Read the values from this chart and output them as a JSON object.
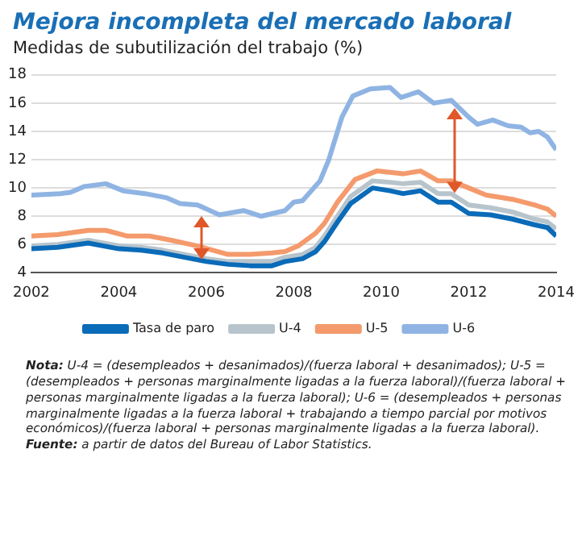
{
  "chart_data": {
    "type": "line",
    "title": "Mejora incompleta del mercado laboral",
    "subtitle": "Medidas de subutilización del trabajo (%)",
    "series": [
      {
        "name": "Tasa de paro",
        "color": "#0a6bb8",
        "x": [
          2002,
          2002.6,
          2003.3,
          2004,
          2004.5,
          2005,
          2005.5,
          2006,
          2006.5,
          2007,
          2007.5,
          2007.8,
          2008.2,
          2008.5,
          2008.7,
          2009,
          2009.3,
          2009.8,
          2010.2,
          2010.5,
          2010.9,
          2011.3,
          2011.6,
          2012,
          2012.5,
          2013,
          2013.5,
          2013.8,
          2014
        ],
        "values": [
          5.7,
          5.8,
          6.1,
          5.7,
          5.6,
          5.4,
          5.1,
          4.8,
          4.6,
          4.5,
          4.5,
          4.8,
          5.0,
          5.5,
          6.2,
          7.6,
          8.9,
          10.0,
          9.8,
          9.6,
          9.8,
          9.0,
          9.0,
          8.2,
          8.1,
          7.8,
          7.4,
          7.2,
          6.6
        ]
      },
      {
        "name": "U-4",
        "color": "#b8c4cc",
        "x": [
          2002,
          2002.6,
          2003.3,
          2004,
          2004.5,
          2005,
          2005.5,
          2006,
          2006.5,
          2007,
          2007.5,
          2007.8,
          2008.2,
          2008.5,
          2008.7,
          2009,
          2009.3,
          2009.8,
          2010.2,
          2010.5,
          2010.9,
          2011.3,
          2011.6,
          2012,
          2012.5,
          2013,
          2013.5,
          2013.8,
          2014
        ],
        "values": [
          5.9,
          6.0,
          6.3,
          5.9,
          5.8,
          5.6,
          5.3,
          5.0,
          4.8,
          4.8,
          4.8,
          5.1,
          5.3,
          5.8,
          6.6,
          8.0,
          9.4,
          10.5,
          10.4,
          10.3,
          10.4,
          9.6,
          9.6,
          8.8,
          8.6,
          8.3,
          7.8,
          7.6,
          7.1
        ]
      },
      {
        "name": "U-5",
        "color": "#f49a6c",
        "x": [
          2002,
          2002.6,
          2003.3,
          2003.7,
          2004.2,
          2004.7,
          2005.2,
          2005.8,
          2006.5,
          2007,
          2007.5,
          2007.8,
          2008.1,
          2008.5,
          2008.7,
          2009,
          2009.4,
          2009.9,
          2010.5,
          2010.9,
          2011.3,
          2011.6,
          2012,
          2012.4,
          2013,
          2013.5,
          2013.8,
          2014
        ],
        "values": [
          6.6,
          6.7,
          7.0,
          7.0,
          6.6,
          6.6,
          6.3,
          5.9,
          5.3,
          5.3,
          5.4,
          5.5,
          5.9,
          6.8,
          7.5,
          9.0,
          10.6,
          11.2,
          11.0,
          11.2,
          10.5,
          10.5,
          10.0,
          9.5,
          9.2,
          8.8,
          8.5,
          8.0
        ]
      },
      {
        "name": "U-6",
        "color": "#8fb4e3",
        "x": [
          2002,
          2002.66,
          2002.9,
          2003.2,
          2003.7,
          2004.1,
          2004.6,
          2005.1,
          2005.4,
          2005.8,
          2006.3,
          2006.85,
          2007.25,
          2007.8,
          2008,
          2008.2,
          2008.6,
          2008.8,
          2009.1,
          2009.35,
          2009.75,
          2010.2,
          2010.45,
          2010.85,
          2011.2,
          2011.6,
          2012,
          2012.2,
          2012.55,
          2012.9,
          2013.2,
          2013.4,
          2013.6,
          2013.8,
          2014
        ],
        "values": [
          9.5,
          9.6,
          9.7,
          10.1,
          10.3,
          9.8,
          9.6,
          9.3,
          8.9,
          8.8,
          8.1,
          8.4,
          8.0,
          8.4,
          9.0,
          9.1,
          10.5,
          12.0,
          15.0,
          16.5,
          17.0,
          17.1,
          16.4,
          16.8,
          16.0,
          16.2,
          15.0,
          14.5,
          14.8,
          14.4,
          14.3,
          13.9,
          14.0,
          13.6,
          12.7
        ]
      }
    ],
    "xlim": [
      2002,
      2014
    ],
    "xticks": [
      2002,
      2004,
      2006,
      2008,
      2010,
      2012,
      2014
    ],
    "ylim": [
      4,
      18
    ],
    "yticks": [
      4,
      6,
      8,
      10,
      12,
      14,
      16,
      18
    ],
    "grid": "y",
    "legend": "bottom",
    "marker": "none",
    "line_style": "solid",
    "annotations": [
      "Nota: U-4 = (desempleados + desanimados)/(fuerza laboral + desanimados); U-5 = (desempleados + personas marginalmente ligadas a la fuerza laboral)/(fuerza laboral + personas marginalmente ligadas a la fuerza laboral); U-6 = (desempleados + personas marginalmente ligadas a la fuerza laboral + trabajando a tiempo parcial por motivos económicos)/(fuerza laboral + personas marginalmente ligadas a la fuerza laboral).",
      "Fuente: a partir de datos del Bureau of Labor Statistics."
    ]
  }
}
